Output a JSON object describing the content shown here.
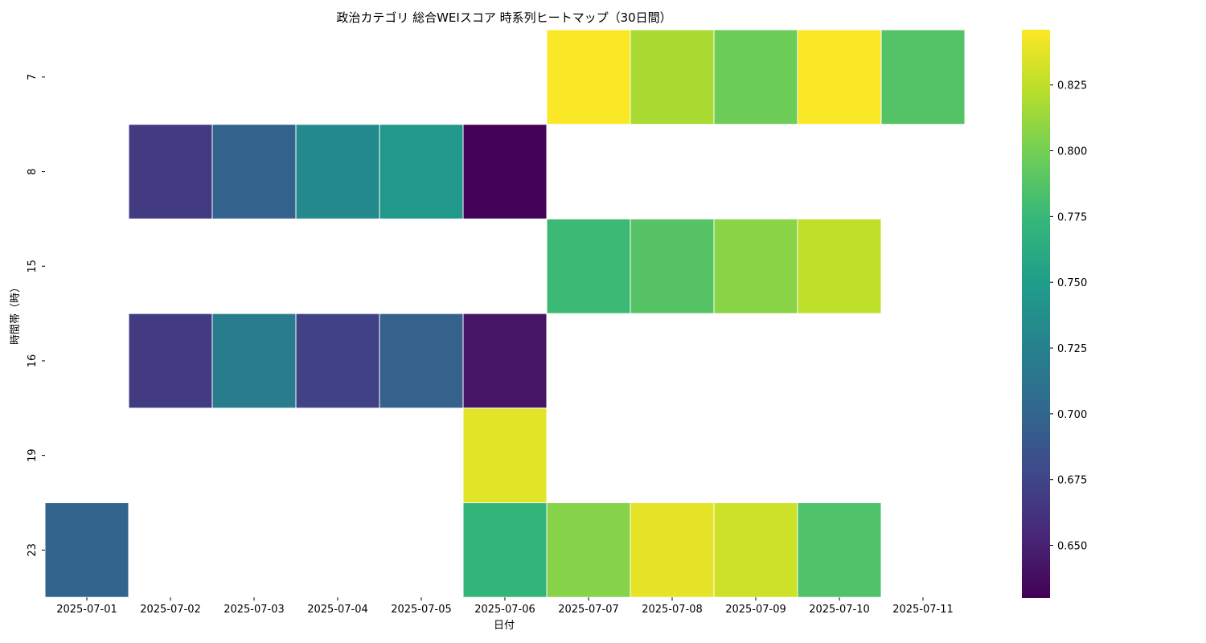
{
  "chart_data": {
    "type": "heatmap",
    "title": "政治カテゴリ 総合WEIスコア 時系列ヒートマップ（30日間）",
    "xlabel": "日付",
    "ylabel": "時間帯（時）",
    "x": [
      "2025-07-01",
      "2025-07-02",
      "2025-07-03",
      "2025-07-04",
      "2025-07-05",
      "2025-07-06",
      "2025-07-07",
      "2025-07-08",
      "2025-07-09",
      "2025-07-10",
      "2025-07-11"
    ],
    "y": [
      "7",
      "8",
      "15",
      "16",
      "19",
      "23"
    ],
    "values": [
      [
        null,
        null,
        null,
        null,
        null,
        null,
        0.845,
        0.818,
        0.797,
        0.845,
        0.787
      ],
      [
        null,
        0.668,
        0.698,
        0.733,
        0.746,
        0.631,
        null,
        null,
        null,
        null,
        null
      ],
      [
        null,
        null,
        null,
        null,
        null,
        null,
        0.777,
        0.788,
        0.807,
        0.825,
        null
      ],
      [
        null,
        0.668,
        0.72,
        0.673,
        0.697,
        0.642,
        null,
        null,
        null,
        null,
        null
      ],
      [
        null,
        null,
        null,
        null,
        null,
        0.837,
        null,
        null,
        null,
        null,
        null
      ],
      [
        0.7,
        null,
        null,
        null,
        null,
        0.772,
        0.806,
        0.838,
        0.83,
        0.785,
        null
      ]
    ],
    "colorbar": {
      "colormap": "viridis",
      "range": [
        0.63,
        0.846
      ],
      "ticks": [
        "0.650",
        "0.675",
        "0.700",
        "0.725",
        "0.750",
        "0.775",
        "0.800",
        "0.825"
      ]
    },
    "grid": false
  }
}
